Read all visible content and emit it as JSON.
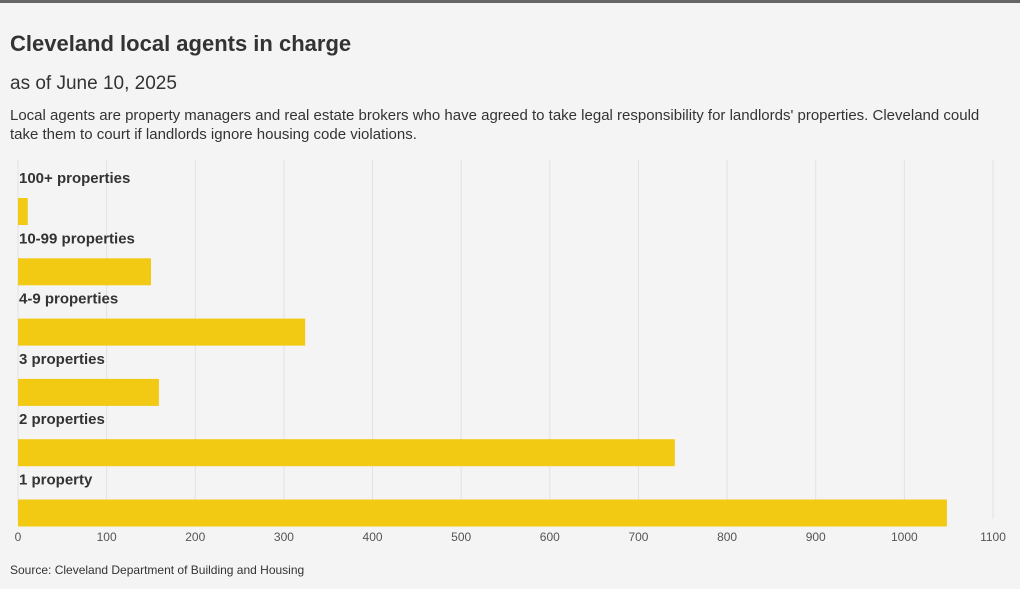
{
  "header": {
    "title": "Cleveland local agents in charge",
    "subtitle": "as of June 10, 2025",
    "description": "Local agents are property managers and real estate brokers who have agreed to take legal responsibility for landlords' properties. Cleveland could take them to court if landlords ignore housing code violations."
  },
  "footer": {
    "source": "Source: Cleveland Department of Building and Housing"
  },
  "colors": {
    "bar": "#f2c913",
    "grid": "#e2e2e2",
    "text": "#333333",
    "background": "#f4f4f4"
  },
  "chart_data": {
    "type": "bar",
    "orientation": "horizontal",
    "categories": [
      "100+ properties",
      "10-99 properties",
      "4-9 properties",
      "3 properties",
      "2 properties",
      "1 property"
    ],
    "values": [
      11,
      150,
      324,
      159,
      741,
      1048
    ],
    "xlim": [
      0,
      1100
    ],
    "xticks": [
      0,
      100,
      200,
      300,
      400,
      500,
      600,
      700,
      800,
      900,
      1000,
      1100
    ],
    "xlabel": "",
    "ylabel": "",
    "grid": true,
    "legend": "none"
  }
}
